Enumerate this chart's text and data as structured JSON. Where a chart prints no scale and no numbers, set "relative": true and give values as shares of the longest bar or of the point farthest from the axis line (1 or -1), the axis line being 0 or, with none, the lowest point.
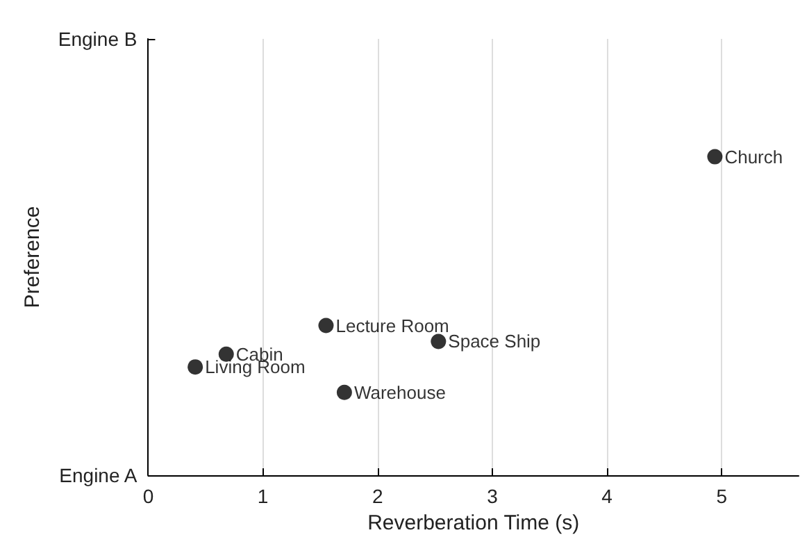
{
  "chart_data": {
    "type": "scatter",
    "xlabel": "Reverberation Time (s)",
    "ylabel": "Preference",
    "relative": true,
    "x": [
      4.94,
      1.55,
      2.53,
      0.68,
      0.41,
      1.71
    ],
    "series": [
      {
        "color": "#000000",
        "values": [
          1,
          0.47,
          0.42,
          0.38,
          0.34,
          0.26
        ]
      }
    ],
    "annotations": [
      "Engine A",
      "Engine B",
      {
        "text": "Church",
        "x": 4.94,
        "y": 1
      },
      {
        "text": "Lecture Room",
        "x": 1.55,
        "y": 0.47
      },
      {
        "text": "Space Ship",
        "x": 2.53,
        "y": 0.42
      },
      {
        "text": "Cabin",
        "x": 0.68,
        "y": 0.38
      },
      {
        "text": "Living Room",
        "x": 0.41,
        "y": 0.34
      },
      {
        "text": "Warehouse",
        "x": 1.71,
        "y": 0.26
      }
    ],
    "xlim": [
      0,
      5.67
    ],
    "xticks": [
      0,
      1,
      2,
      3,
      4,
      5
    ],
    "grid": "x",
    "marker": "circle"
  }
}
